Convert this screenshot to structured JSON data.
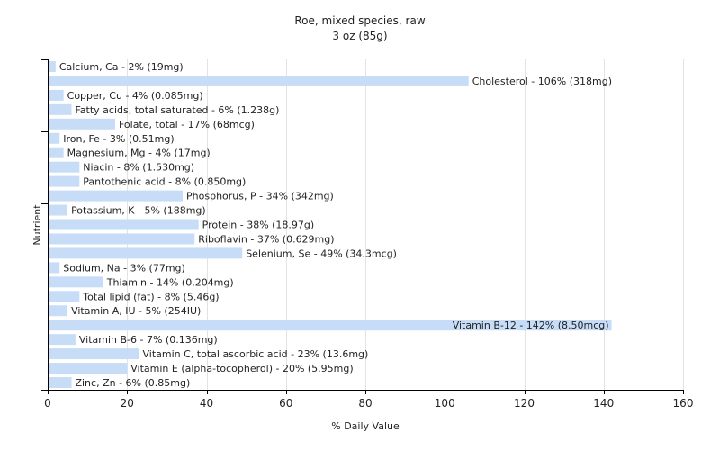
{
  "chart_data": {
    "type": "bar",
    "orientation": "horizontal",
    "title": "Roe, mixed species, raw",
    "subtitle": "3 oz (85g)",
    "xlabel": "% Daily Value",
    "ylabel": "Nutrient",
    "xlim": [
      0,
      160
    ],
    "xticks": [
      0,
      20,
      40,
      60,
      80,
      100,
      120,
      140,
      160
    ],
    "grid": "vertical",
    "bar_color": "#c6dcf7",
    "bars": [
      {
        "value": 2,
        "label": "Calcium, Ca - 2% (19mg)"
      },
      {
        "value": 106,
        "label": "Cholesterol - 106% (318mg)"
      },
      {
        "value": 4,
        "label": "Copper, Cu - 4% (0.085mg)"
      },
      {
        "value": 6,
        "label": "Fatty acids, total saturated - 6% (1.238g)"
      },
      {
        "value": 17,
        "label": "Folate, total - 17% (68mcg)"
      },
      {
        "value": 3,
        "label": "Iron, Fe - 3% (0.51mg)"
      },
      {
        "value": 4,
        "label": "Magnesium, Mg - 4% (17mg)"
      },
      {
        "value": 8,
        "label": "Niacin - 8% (1.530mg)"
      },
      {
        "value": 8,
        "label": "Pantothenic acid - 8% (0.850mg)"
      },
      {
        "value": 34,
        "label": "Phosphorus, P - 34% (342mg)"
      },
      {
        "value": 5,
        "label": "Potassium, K - 5% (188mg)"
      },
      {
        "value": 38,
        "label": "Protein - 38% (18.97g)"
      },
      {
        "value": 37,
        "label": "Riboflavin - 37% (0.629mg)"
      },
      {
        "value": 49,
        "label": "Selenium, Se - 49% (34.3mcg)"
      },
      {
        "value": 3,
        "label": "Sodium, Na - 3% (77mg)"
      },
      {
        "value": 14,
        "label": "Thiamin - 14% (0.204mg)"
      },
      {
        "value": 8,
        "label": "Total lipid (fat) - 8% (5.46g)"
      },
      {
        "value": 5,
        "label": "Vitamin A, IU - 5% (254IU)"
      },
      {
        "value": 142,
        "label": "Vitamin B-12 - 142% (8.50mcg)"
      },
      {
        "value": 7,
        "label": "Vitamin B-6 - 7% (0.136mg)"
      },
      {
        "value": 23,
        "label": "Vitamin C, total ascorbic acid - 23% (13.6mg)"
      },
      {
        "value": 20,
        "label": "Vitamin E (alpha-tocopherol) - 20% (5.95mg)"
      },
      {
        "value": 6,
        "label": "Zinc, Zn - 6% (0.85mg)"
      }
    ]
  }
}
